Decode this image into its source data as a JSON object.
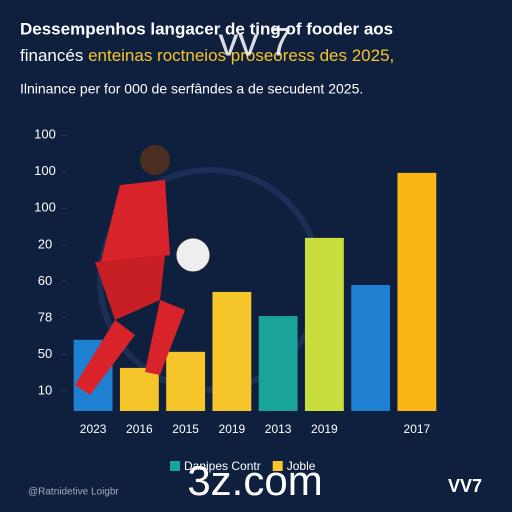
{
  "chart_data": {
    "type": "bar",
    "title": "Dessempenhos langacer de ting of fooder aos",
    "title_line2": [
      "financés",
      "enteinas roctneios proseoress des 2025,"
    ],
    "watermark": "vv 7",
    "subtitle": "Ilninance per for 000 de serfândes a de secudent 2025.",
    "categories": [
      "2023",
      "2016",
      "2015",
      "2019",
      "2013",
      "2019",
      null,
      "2017"
    ],
    "values": [
      24,
      16.3,
      20.7,
      37.1,
      30.5,
      51.9,
      39,
      69.7
    ],
    "colors": [
      "#1f7fd0",
      "#f5c52a",
      "#f5c52a",
      "#f5c52a",
      "#1aa39a",
      "#c8de3c",
      "#1f7fd0",
      "#fbb514"
    ],
    "ylim": [
      4.5,
      85
    ],
    "yticks": [
      10,
      {
        "value": 20,
        "label": "50"
      },
      {
        "value": 30,
        "label": "78"
      },
      {
        "value": 40,
        "label": "60"
      },
      {
        "value": 50,
        "label": "20"
      },
      {
        "value": 60,
        "label": "100"
      },
      {
        "value": 70,
        "label": "100"
      },
      {
        "value": 80,
        "label": "100"
      }
    ],
    "legend": [
      {
        "label": "Danipes Contr",
        "color": "#1aa39a"
      },
      {
        "label": "Joble",
        "color": "#f5c52a"
      }
    ],
    "overlay": "3z.com",
    "footer_left": "@Ratnidetive Loigbr",
    "footer_right": "VV7"
  }
}
